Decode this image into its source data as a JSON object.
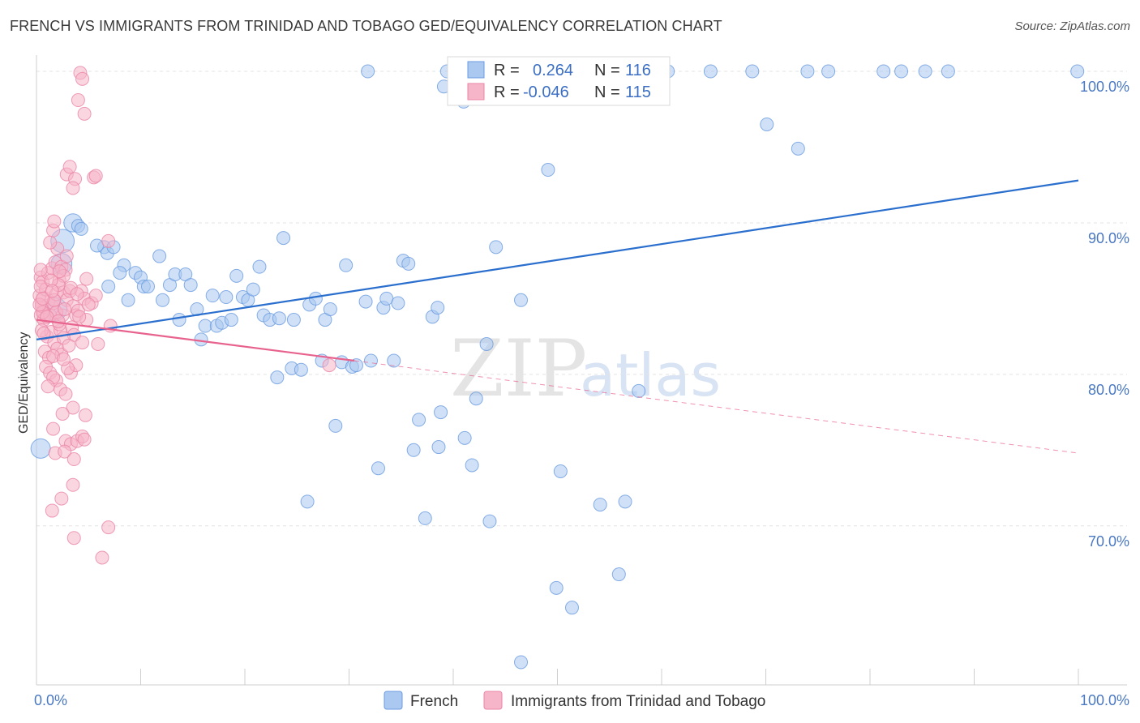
{
  "header": {
    "title": "FRENCH VS IMMIGRANTS FROM TRINIDAD AND TOBAGO GED/EQUIVALENCY CORRELATION CHART",
    "source": "Source: ZipAtlas.com"
  },
  "legend_top": {
    "rows": [
      {
        "r_label": "R =",
        "r_value": "0.264",
        "n_label": "N =",
        "n_value": "116"
      },
      {
        "r_label": "R =",
        "r_value": "-0.046",
        "n_label": "N =",
        "n_value": "115"
      }
    ]
  },
  "legend_bottom": {
    "items": [
      {
        "label": "French"
      },
      {
        "label": "Immigrants from Trinidad and Tobago"
      }
    ]
  },
  "watermark": {
    "zip": "ZIP",
    "atlas": "atlas"
  },
  "colors": {
    "blue_fill": "#aac8f0",
    "blue_stroke": "#6a9be0",
    "blue_line": "#2b6fce",
    "pink_fill": "#f6b5c9",
    "pink_stroke": "#ea86a6",
    "pink_line": "#e8628e",
    "tick_text": "#4a78c2",
    "grid": "#e3e3e3"
  },
  "chart_data": {
    "type": "scatter",
    "title": "FRENCH VS IMMIGRANTS FROM TRINIDAD AND TOBAGO GED/EQUIVALENCY CORRELATION CHART",
    "xlabel": "",
    "ylabel": "GED/Equivalency",
    "xlim": [
      0,
      100
    ],
    "ylim": [
      59.5,
      101.5
    ],
    "x_ticks": [
      "0.0%",
      "100.0%"
    ],
    "y_ticks": [
      {
        "value": 70,
        "label": "70.0%"
      },
      {
        "value": 80,
        "label": "80.0%"
      },
      {
        "value": 90,
        "label": "90.0%"
      },
      {
        "value": 100,
        "label": "100.0%"
      }
    ],
    "grid": "horizontal dashed",
    "legend_position": "top-center",
    "series": [
      {
        "name": "French",
        "r": 0.264,
        "n": 116,
        "trend": {
          "x0": 0,
          "y0": 82.3,
          "x1": 100,
          "y1": 92.8,
          "style": "solid"
        },
        "points": [
          {
            "x": 0.4,
            "y": 75.1,
            "s": 1.5
          },
          {
            "x": 2.5,
            "y": 88.8,
            "s": 1.8
          },
          {
            "x": 3.5,
            "y": 90.0,
            "s": 1.4
          },
          {
            "x": 4.0,
            "y": 89.8
          },
          {
            "x": 4.3,
            "y": 89.6
          },
          {
            "x": 1.8,
            "y": 84.3,
            "s": 1.8
          },
          {
            "x": 2.4,
            "y": 87.3,
            "s": 1.6
          },
          {
            "x": 6.5,
            "y": 88.4
          },
          {
            "x": 6.8,
            "y": 88.0
          },
          {
            "x": 5.8,
            "y": 88.5
          },
          {
            "x": 7.4,
            "y": 88.4
          },
          {
            "x": 8.4,
            "y": 87.2
          },
          {
            "x": 8.0,
            "y": 86.7
          },
          {
            "x": 9.5,
            "y": 86.7
          },
          {
            "x": 10.0,
            "y": 86.4
          },
          {
            "x": 11.8,
            "y": 87.8
          },
          {
            "x": 6.9,
            "y": 85.8
          },
          {
            "x": 8.8,
            "y": 84.9
          },
          {
            "x": 10.3,
            "y": 85.8
          },
          {
            "x": 10.7,
            "y": 85.8
          },
          {
            "x": 12.8,
            "y": 85.9
          },
          {
            "x": 13.3,
            "y": 86.6
          },
          {
            "x": 14.3,
            "y": 86.6
          },
          {
            "x": 14.8,
            "y": 85.9
          },
          {
            "x": 16.9,
            "y": 85.2
          },
          {
            "x": 18.2,
            "y": 85.1
          },
          {
            "x": 19.2,
            "y": 86.5
          },
          {
            "x": 19.8,
            "y": 85.1
          },
          {
            "x": 20.3,
            "y": 84.9
          },
          {
            "x": 20.8,
            "y": 85.6
          },
          {
            "x": 21.4,
            "y": 87.1
          },
          {
            "x": 23.7,
            "y": 89.0
          },
          {
            "x": 12.1,
            "y": 84.9
          },
          {
            "x": 13.7,
            "y": 83.6
          },
          {
            "x": 15.4,
            "y": 84.3
          },
          {
            "x": 16.2,
            "y": 83.2
          },
          {
            "x": 17.3,
            "y": 83.2
          },
          {
            "x": 17.8,
            "y": 83.4
          },
          {
            "x": 18.7,
            "y": 83.6
          },
          {
            "x": 21.8,
            "y": 83.9
          },
          {
            "x": 22.4,
            "y": 83.6
          },
          {
            "x": 23.3,
            "y": 83.7
          },
          {
            "x": 24.7,
            "y": 83.6
          },
          {
            "x": 26.2,
            "y": 84.6
          },
          {
            "x": 26.8,
            "y": 85.0
          },
          {
            "x": 27.7,
            "y": 83.6
          },
          {
            "x": 28.2,
            "y": 84.3
          },
          {
            "x": 29.7,
            "y": 87.2
          },
          {
            "x": 31.6,
            "y": 84.8
          },
          {
            "x": 33.3,
            "y": 84.4
          },
          {
            "x": 33.6,
            "y": 85.0
          },
          {
            "x": 34.7,
            "y": 84.7
          },
          {
            "x": 35.2,
            "y": 87.5
          },
          {
            "x": 35.7,
            "y": 87.3
          },
          {
            "x": 38.0,
            "y": 83.8
          },
          {
            "x": 38.5,
            "y": 84.4
          },
          {
            "x": 44.1,
            "y": 88.4
          },
          {
            "x": 46.5,
            "y": 84.9
          },
          {
            "x": 15.8,
            "y": 82.3
          },
          {
            "x": 24.5,
            "y": 80.4
          },
          {
            "x": 25.4,
            "y": 80.3
          },
          {
            "x": 27.4,
            "y": 80.9
          },
          {
            "x": 29.3,
            "y": 80.8
          },
          {
            "x": 30.3,
            "y": 80.5
          },
          {
            "x": 30.7,
            "y": 80.6
          },
          {
            "x": 32.1,
            "y": 80.9
          },
          {
            "x": 34.3,
            "y": 80.9
          },
          {
            "x": 23.1,
            "y": 79.8
          },
          {
            "x": 43.2,
            "y": 82.0
          },
          {
            "x": 42.2,
            "y": 78.4
          },
          {
            "x": 38.8,
            "y": 77.5
          },
          {
            "x": 36.7,
            "y": 77.0
          },
          {
            "x": 28.7,
            "y": 76.6
          },
          {
            "x": 36.2,
            "y": 75.0
          },
          {
            "x": 38.6,
            "y": 75.2
          },
          {
            "x": 41.1,
            "y": 75.8
          },
          {
            "x": 41.8,
            "y": 74.0
          },
          {
            "x": 32.8,
            "y": 73.8
          },
          {
            "x": 50.3,
            "y": 73.6
          },
          {
            "x": 57.8,
            "y": 78.9
          },
          {
            "x": 26.0,
            "y": 71.6
          },
          {
            "x": 37.3,
            "y": 70.5
          },
          {
            "x": 43.5,
            "y": 70.3
          },
          {
            "x": 54.1,
            "y": 71.4
          },
          {
            "x": 56.5,
            "y": 71.6
          },
          {
            "x": 49.9,
            "y": 65.9
          },
          {
            "x": 51.4,
            "y": 64.6
          },
          {
            "x": 55.9,
            "y": 66.8
          },
          {
            "x": 46.5,
            "y": 61.0
          },
          {
            "x": 49.1,
            "y": 93.5
          },
          {
            "x": 70.1,
            "y": 96.5
          },
          {
            "x": 73.1,
            "y": 94.9
          },
          {
            "x": 39.1,
            "y": 99.0
          },
          {
            "x": 41.0,
            "y": 98.0
          },
          {
            "x": 31.8,
            "y": 100.0
          },
          {
            "x": 39.4,
            "y": 100.0
          },
          {
            "x": 42.0,
            "y": 100.0
          },
          {
            "x": 47.3,
            "y": 100.0
          },
          {
            "x": 53.1,
            "y": 100.0
          },
          {
            "x": 56.6,
            "y": 100.0
          },
          {
            "x": 60.6,
            "y": 100.0
          },
          {
            "x": 64.7,
            "y": 100.0
          },
          {
            "x": 68.7,
            "y": 100.0
          },
          {
            "x": 74.0,
            "y": 100.0
          },
          {
            "x": 76.0,
            "y": 100.0
          },
          {
            "x": 81.3,
            "y": 100.0
          },
          {
            "x": 83.0,
            "y": 100.0
          },
          {
            "x": 85.3,
            "y": 100.0
          },
          {
            "x": 87.5,
            "y": 100.0
          },
          {
            "x": 99.9,
            "y": 100.0
          }
        ]
      },
      {
        "name": "Immigrants from Trinidad and Tobago",
        "r": -0.046,
        "n": 115,
        "trend": {
          "x0": 0,
          "y0": 83.6,
          "x1": 30.5,
          "y1": 80.9,
          "style": "solid",
          "extend_to": {
            "x": 100,
            "y": 74.8
          },
          "extend_style": "dashed"
        },
        "points": [
          {
            "x": 1.2,
            "y": 84.2,
            "s": 1.8
          },
          {
            "x": 0.8,
            "y": 84.8,
            "s": 1.5
          },
          {
            "x": 0.6,
            "y": 83.9,
            "s": 1.3
          },
          {
            "x": 0.5,
            "y": 84.5
          },
          {
            "x": 0.3,
            "y": 85.2
          },
          {
            "x": 0.4,
            "y": 86.4
          },
          {
            "x": 0.6,
            "y": 86.1
          },
          {
            "x": 0.9,
            "y": 85.6
          },
          {
            "x": 1.1,
            "y": 86.7
          },
          {
            "x": 0.4,
            "y": 85.8
          },
          {
            "x": 0.7,
            "y": 83.6
          },
          {
            "x": 1.3,
            "y": 83.9
          },
          {
            "x": 1.6,
            "y": 84.7
          },
          {
            "x": 1.9,
            "y": 85.3
          },
          {
            "x": 2.2,
            "y": 86.2
          },
          {
            "x": 1.5,
            "y": 87.0
          },
          {
            "x": 1.8,
            "y": 87.4
          },
          {
            "x": 2.0,
            "y": 88.3
          },
          {
            "x": 2.4,
            "y": 87.1
          },
          {
            "x": 2.8,
            "y": 86.9
          },
          {
            "x": 1.3,
            "y": 88.7
          },
          {
            "x": 1.6,
            "y": 89.5
          },
          {
            "x": 1.7,
            "y": 90.1
          },
          {
            "x": 2.6,
            "y": 85.4
          },
          {
            "x": 2.9,
            "y": 84.9
          },
          {
            "x": 3.2,
            "y": 85.5
          },
          {
            "x": 3.5,
            "y": 84.5
          },
          {
            "x": 3.8,
            "y": 83.9
          },
          {
            "x": 4.0,
            "y": 84.2
          },
          {
            "x": 4.3,
            "y": 85.5
          },
          {
            "x": 4.6,
            "y": 85.0
          },
          {
            "x": 5.3,
            "y": 84.7
          },
          {
            "x": 5.7,
            "y": 85.2
          },
          {
            "x": 3.3,
            "y": 85.7
          },
          {
            "x": 2.6,
            "y": 86.5
          },
          {
            "x": 2.1,
            "y": 85.9
          },
          {
            "x": 1.0,
            "y": 82.5
          },
          {
            "x": 1.4,
            "y": 82.8
          },
          {
            "x": 1.7,
            "y": 82.1
          },
          {
            "x": 2.0,
            "y": 81.7
          },
          {
            "x": 2.4,
            "y": 81.3
          },
          {
            "x": 0.8,
            "y": 81.5
          },
          {
            "x": 1.2,
            "y": 81.1
          },
          {
            "x": 1.6,
            "y": 81.2
          },
          {
            "x": 3.4,
            "y": 83.1
          },
          {
            "x": 3.6,
            "y": 82.6
          },
          {
            "x": 4.4,
            "y": 82.1
          },
          {
            "x": 4.8,
            "y": 83.6
          },
          {
            "x": 7.1,
            "y": 83.2
          },
          {
            "x": 5.9,
            "y": 82.0
          },
          {
            "x": 2.3,
            "y": 82.9
          },
          {
            "x": 2.6,
            "y": 82.4
          },
          {
            "x": 0.9,
            "y": 80.5
          },
          {
            "x": 1.3,
            "y": 80.1
          },
          {
            "x": 1.9,
            "y": 79.6
          },
          {
            "x": 2.3,
            "y": 79.0
          },
          {
            "x": 2.8,
            "y": 78.7
          },
          {
            "x": 3.3,
            "y": 80.1
          },
          {
            "x": 3.8,
            "y": 80.6
          },
          {
            "x": 1.6,
            "y": 79.8
          },
          {
            "x": 1.1,
            "y": 79.2
          },
          {
            "x": 3.5,
            "y": 77.8
          },
          {
            "x": 2.5,
            "y": 77.4
          },
          {
            "x": 4.7,
            "y": 77.3
          },
          {
            "x": 1.6,
            "y": 76.4
          },
          {
            "x": 2.8,
            "y": 75.6
          },
          {
            "x": 3.3,
            "y": 75.4
          },
          {
            "x": 3.9,
            "y": 75.6
          },
          {
            "x": 4.4,
            "y": 75.9
          },
          {
            "x": 4.6,
            "y": 75.7
          },
          {
            "x": 1.8,
            "y": 74.8
          },
          {
            "x": 2.7,
            "y": 74.9
          },
          {
            "x": 3.6,
            "y": 74.4
          },
          {
            "x": 3.5,
            "y": 72.7
          },
          {
            "x": 2.4,
            "y": 71.8
          },
          {
            "x": 1.5,
            "y": 71.0
          },
          {
            "x": 6.9,
            "y": 69.9
          },
          {
            "x": 3.6,
            "y": 69.2
          },
          {
            "x": 6.3,
            "y": 67.9
          },
          {
            "x": 2.9,
            "y": 93.2
          },
          {
            "x": 3.2,
            "y": 93.7
          },
          {
            "x": 3.7,
            "y": 92.9
          },
          {
            "x": 3.5,
            "y": 92.3
          },
          {
            "x": 5.5,
            "y": 93.0
          },
          {
            "x": 5.7,
            "y": 93.1
          },
          {
            "x": 4.6,
            "y": 97.2
          },
          {
            "x": 4.0,
            "y": 98.1
          },
          {
            "x": 4.2,
            "y": 99.9
          },
          {
            "x": 4.4,
            "y": 99.5
          },
          {
            "x": 6.9,
            "y": 88.8
          },
          {
            "x": 2.2,
            "y": 83.3
          },
          {
            "x": 2.5,
            "y": 83.9
          },
          {
            "x": 0.6,
            "y": 84.1
          },
          {
            "x": 0.5,
            "y": 82.9
          },
          {
            "x": 1.9,
            "y": 84.1
          },
          {
            "x": 1.0,
            "y": 83.8
          },
          {
            "x": 1.4,
            "y": 86.2
          },
          {
            "x": 0.4,
            "y": 86.9
          },
          {
            "x": 2.7,
            "y": 84.3
          },
          {
            "x": 4.1,
            "y": 83.8
          },
          {
            "x": 5.0,
            "y": 84.6
          },
          {
            "x": 3.0,
            "y": 80.4
          },
          {
            "x": 28.1,
            "y": 80.6
          },
          {
            "x": 3.1,
            "y": 81.9
          },
          {
            "x": 0.7,
            "y": 82.7
          },
          {
            "x": 2.1,
            "y": 83.5
          },
          {
            "x": 0.3,
            "y": 84.6
          },
          {
            "x": 1.7,
            "y": 84.9
          },
          {
            "x": 3.9,
            "y": 85.3
          },
          {
            "x": 4.8,
            "y": 86.3
          },
          {
            "x": 2.2,
            "y": 86.8
          },
          {
            "x": 2.9,
            "y": 87.8
          },
          {
            "x": 1.5,
            "y": 85.5
          },
          {
            "x": 0.6,
            "y": 85.0
          },
          {
            "x": 2.6,
            "y": 81.0
          }
        ]
      }
    ]
  }
}
